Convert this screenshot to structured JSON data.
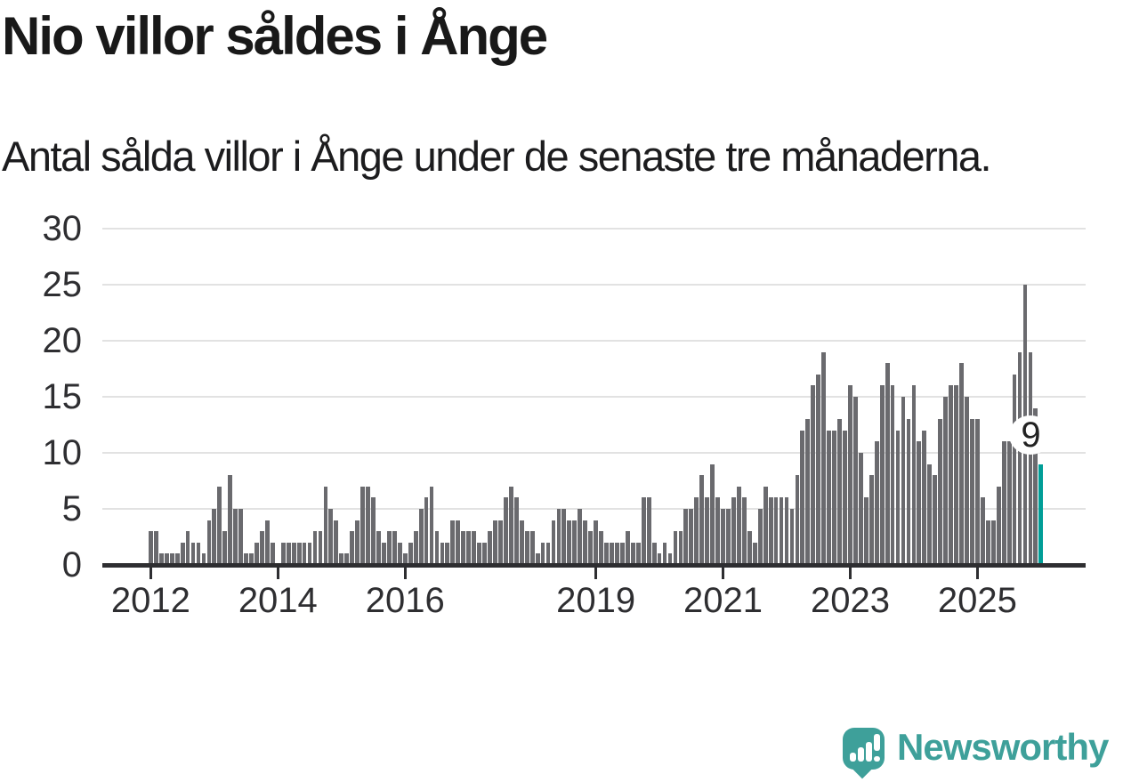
{
  "header": {
    "title": "Nio villor såldes i Ånge",
    "subtitle": "Antal sålda villor i Ånge under de senaste tre månaderna."
  },
  "chart_data": {
    "type": "bar",
    "title": "Nio villor såldes i Ånge",
    "subtitle": "Antal sålda villor i Ånge under de senaste tre månaderna.",
    "x_unit": "month",
    "x_start": "2012-01",
    "ylim": [
      0,
      30
    ],
    "yticks": [
      0,
      5,
      10,
      15,
      20,
      25,
      30
    ],
    "xticks": [
      2012,
      2014,
      2016,
      2019,
      2021,
      2023,
      2025
    ],
    "grid": "horizontal",
    "bar_color": "#6a6a6e",
    "highlight_color": "#009e97",
    "values": [
      3,
      3,
      1,
      1,
      1,
      1,
      2,
      3,
      2,
      2,
      1,
      4,
      5,
      7,
      3,
      8,
      5,
      5,
      1,
      1,
      2,
      3,
      4,
      2,
      0,
      2,
      2,
      2,
      2,
      2,
      2,
      3,
      3,
      7,
      5,
      4,
      1,
      1,
      3,
      4,
      7,
      7,
      6,
      3,
      2,
      3,
      3,
      2,
      1,
      2,
      3,
      5,
      6,
      7,
      3,
      2,
      2,
      4,
      4,
      3,
      3,
      3,
      2,
      2,
      3,
      4,
      4,
      6,
      7,
      6,
      4,
      3,
      3,
      1,
      2,
      2,
      4,
      5,
      5,
      4,
      4,
      5,
      4,
      3,
      4,
      3,
      2,
      2,
      2,
      2,
      3,
      2,
      2,
      6,
      6,
      2,
      1,
      2,
      1,
      3,
      3,
      5,
      5,
      6,
      8,
      6,
      9,
      6,
      5,
      5,
      6,
      7,
      6,
      3,
      2,
      5,
      7,
      6,
      6,
      6,
      6,
      5,
      8,
      12,
      13,
      16,
      17,
      19,
      12,
      12,
      13,
      12,
      16,
      15,
      10,
      6,
      8,
      11,
      16,
      18,
      16,
      12,
      15,
      13,
      16,
      11,
      12,
      9,
      8,
      13,
      15,
      16,
      16,
      18,
      15,
      13,
      13,
      6,
      4,
      4,
      7,
      11,
      11,
      17,
      19,
      25,
      19,
      14,
      9
    ],
    "highlight": {
      "index": 168,
      "value": 9,
      "label": "9"
    }
  },
  "footer": {
    "brand": "Newsworthy"
  }
}
